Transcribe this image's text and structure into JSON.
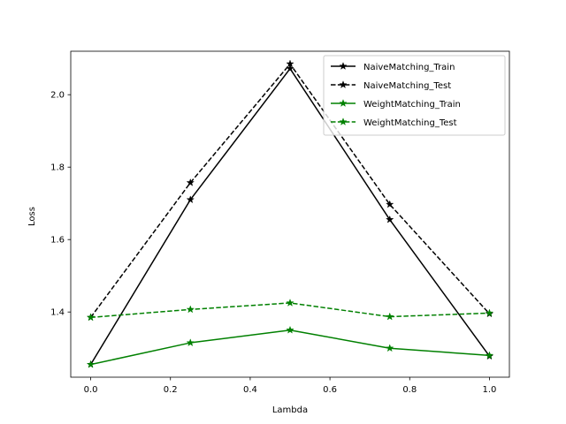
{
  "chart_data": {
    "type": "line",
    "title": "",
    "xlabel": "Lambda",
    "ylabel": "Loss",
    "x": [
      0.0,
      0.25,
      0.5,
      0.75,
      1.0
    ],
    "xlim": [
      -0.05,
      1.05
    ],
    "ylim": [
      1.22,
      2.12
    ],
    "xticks": [
      0.0,
      0.2,
      0.4,
      0.6,
      0.8,
      1.0
    ],
    "xtick_labels": [
      "0.0",
      "0.2",
      "0.4",
      "0.6",
      "0.8",
      "1.0"
    ],
    "yticks": [
      1.4,
      1.6,
      1.8,
      2.0
    ],
    "ytick_labels": [
      "1.4",
      "1.6",
      "1.8",
      "2.0"
    ],
    "grid": false,
    "legend_position": "top-right",
    "series": [
      {
        "name": "NaiveMatching_Train",
        "color": "#000000",
        "dash": "solid",
        "marker": "star",
        "values": [
          1.255,
          1.71,
          2.072,
          1.655,
          1.278
        ]
      },
      {
        "name": "NaiveMatching_Test",
        "color": "#000000",
        "dash": "dashed",
        "marker": "star",
        "values": [
          1.385,
          1.757,
          2.085,
          1.697,
          1.395
        ]
      },
      {
        "name": "WeightMatching_Train",
        "color": "#008000",
        "dash": "solid",
        "marker": "star",
        "values": [
          1.255,
          1.315,
          1.35,
          1.3,
          1.28
        ]
      },
      {
        "name": "WeightMatching_Test",
        "color": "#008000",
        "dash": "dashed",
        "marker": "star",
        "values": [
          1.385,
          1.407,
          1.425,
          1.387,
          1.397
        ]
      }
    ]
  }
}
